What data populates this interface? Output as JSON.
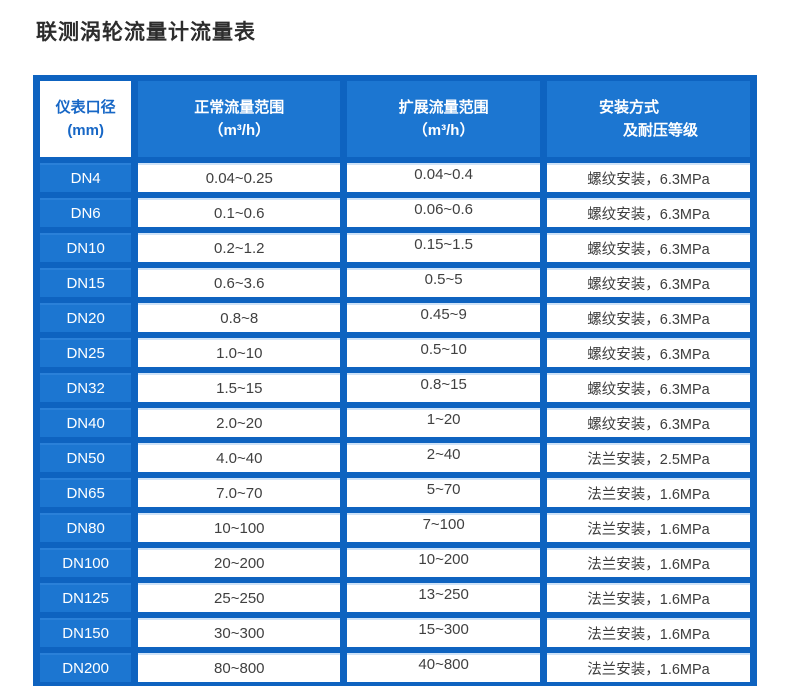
{
  "page": {
    "title": "联测涡轮流量计流量表"
  },
  "colors": {
    "grid_blue": "#0e63c0",
    "cell_blue": "#1c76d1",
    "light_edge": "#cfe3f8",
    "header_text": "#ffffff",
    "diameter_header_text": "#1767c6",
    "body_text": "#404040"
  },
  "table": {
    "headers": [
      {
        "line1": "仪表口径",
        "line2": "(mm)"
      },
      {
        "line1": "正常流量范围",
        "line2": "（m³/h）"
      },
      {
        "line1": "扩展流量范围",
        "line2": "（m³/h）"
      },
      {
        "line1": "安装方式",
        "line2": "及耐压等级"
      }
    ],
    "rows": [
      {
        "diameter": "DN4",
        "normal_range": "0.04~0.25",
        "extended_range": "0.04~0.4",
        "installation": "螺纹安装，6.3MPa"
      },
      {
        "diameter": "DN6",
        "normal_range": "0.1~0.6",
        "extended_range": "0.06~0.6",
        "installation": "螺纹安装，6.3MPa"
      },
      {
        "diameter": "DN10",
        "normal_range": "0.2~1.2",
        "extended_range": "0.15~1.5",
        "installation": "螺纹安装，6.3MPa"
      },
      {
        "diameter": "DN15",
        "normal_range": "0.6~3.6",
        "extended_range": "0.5~5",
        "installation": "螺纹安装，6.3MPa"
      },
      {
        "diameter": "DN20",
        "normal_range": "0.8~8",
        "extended_range": "0.45~9",
        "installation": "螺纹安装，6.3MPa"
      },
      {
        "diameter": "DN25",
        "normal_range": "1.0~10",
        "extended_range": "0.5~10",
        "installation": "螺纹安装，6.3MPa"
      },
      {
        "diameter": "DN32",
        "normal_range": "1.5~15",
        "extended_range": "0.8~15",
        "installation": "螺纹安装，6.3MPa"
      },
      {
        "diameter": "DN40",
        "normal_range": "2.0~20",
        "extended_range": "1~20",
        "installation": "螺纹安装，6.3MPa"
      },
      {
        "diameter": "DN50",
        "normal_range": "4.0~40",
        "extended_range": "2~40",
        "installation": "法兰安装，2.5MPa"
      },
      {
        "diameter": "DN65",
        "normal_range": "7.0~70",
        "extended_range": "5~70",
        "installation": "法兰安装，1.6MPa"
      },
      {
        "diameter": "DN80",
        "normal_range": "10~100",
        "extended_range": "7~100",
        "installation": "法兰安装，1.6MPa"
      },
      {
        "diameter": "DN100",
        "normal_range": "20~200",
        "extended_range": "10~200",
        "installation": "法兰安装，1.6MPa"
      },
      {
        "diameter": "DN125",
        "normal_range": "25~250",
        "extended_range": "13~250",
        "installation": "法兰安装，1.6MPa"
      },
      {
        "diameter": "DN150",
        "normal_range": "30~300",
        "extended_range": "15~300",
        "installation": "法兰安装，1.6MPa"
      },
      {
        "diameter": "DN200",
        "normal_range": "80~800",
        "extended_range": "40~800",
        "installation": "法兰安装，1.6MPa"
      }
    ]
  }
}
